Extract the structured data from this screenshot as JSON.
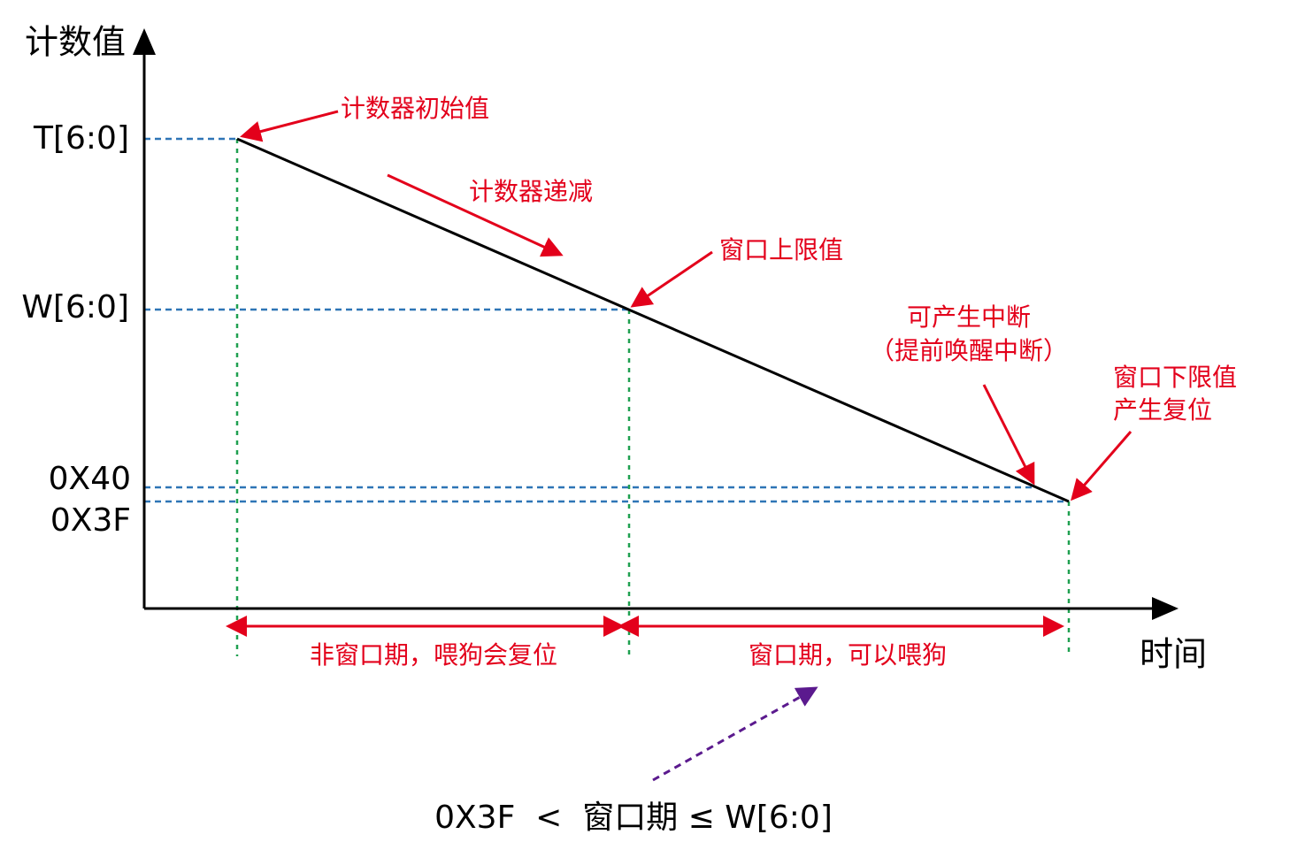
{
  "axes": {
    "y_label": "计数值",
    "x_label": "时间"
  },
  "levels": [
    "T[6:0]",
    "W[6:0]",
    "0X40",
    "0X3F"
  ],
  "annotations": {
    "initial": "计数器初始值",
    "decrement": "计数器递减",
    "upper": "窗口上限值",
    "interrupt": [
      "可产生中断",
      "（提前唤醒中断）"
    ],
    "lower": [
      "窗口下限值",
      "产生复位"
    ]
  },
  "periods": [
    "非窗口期，喂狗会复位",
    "窗口期，可以喂狗"
  ],
  "formula": "0X3F  <  窗口期 ≤ W[6:0]"
}
